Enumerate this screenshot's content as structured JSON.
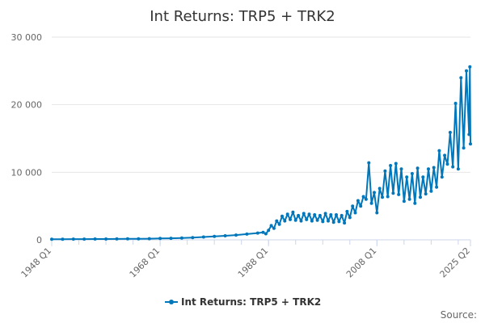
{
  "chart_data": {
    "type": "line",
    "title": "Int Returns: TRP5 + TRK2",
    "xlabel": "",
    "ylabel": "",
    "ylim": [
      0,
      30000
    ],
    "y_ticks": [
      0,
      10000,
      20000,
      30000
    ],
    "y_tick_labels": [
      "0",
      "10 000",
      "20 000",
      "30 000"
    ],
    "x_tick_labels": [
      "1948 Q1",
      "1968 Q1",
      "1988 Q1",
      "2008 Q1",
      "2025 Q2"
    ],
    "x_tick_positions": [
      1948.0,
      1968.0,
      1988.0,
      2008.0,
      2025.25
    ],
    "xlim": [
      1948.0,
      2025.25
    ],
    "grid": true,
    "legend_position": "bottom",
    "series": [
      {
        "name": "Int Returns: TRP5 + TRK2",
        "color": "#0077bb",
        "marker": "circle",
        "points": [
          [
            1948.0,
            90
          ],
          [
            1950.0,
            100
          ],
          [
            1952.0,
            110
          ],
          [
            1954.0,
            110
          ],
          [
            1956.0,
            120
          ],
          [
            1958.0,
            120
          ],
          [
            1960.0,
            130
          ],
          [
            1962.0,
            140
          ],
          [
            1964.0,
            150
          ],
          [
            1966.0,
            170
          ],
          [
            1968.0,
            200
          ],
          [
            1970.0,
            230
          ],
          [
            1972.0,
            280
          ],
          [
            1974.0,
            340
          ],
          [
            1976.0,
            420
          ],
          [
            1978.0,
            500
          ],
          [
            1980.0,
            600
          ],
          [
            1982.0,
            700
          ],
          [
            1984.0,
            850
          ],
          [
            1986.0,
            1000
          ],
          [
            1987.0,
            1100
          ],
          [
            1987.5,
            900
          ],
          [
            1988.0,
            1400
          ],
          [
            1988.5,
            2100
          ],
          [
            1989.0,
            1700
          ],
          [
            1989.5,
            2800
          ],
          [
            1990.0,
            2300
          ],
          [
            1990.5,
            3500
          ],
          [
            1991.0,
            2800
          ],
          [
            1991.5,
            3800
          ],
          [
            1992.0,
            3000
          ],
          [
            1992.5,
            4100
          ],
          [
            1993.0,
            2900
          ],
          [
            1993.5,
            3600
          ],
          [
            1994.0,
            2800
          ],
          [
            1994.5,
            3900
          ],
          [
            1995.0,
            3000
          ],
          [
            1995.5,
            3800
          ],
          [
            1996.0,
            2800
          ],
          [
            1996.5,
            3700
          ],
          [
            1997.0,
            2900
          ],
          [
            1997.5,
            3600
          ],
          [
            1998.0,
            2700
          ],
          [
            1998.5,
            3900
          ],
          [
            1999.0,
            2800
          ],
          [
            1999.5,
            3700
          ],
          [
            2000.0,
            2600
          ],
          [
            2000.5,
            3700
          ],
          [
            2001.0,
            2700
          ],
          [
            2001.5,
            3600
          ],
          [
            2002.0,
            2500
          ],
          [
            2002.5,
            4200
          ],
          [
            2003.0,
            3300
          ],
          [
            2003.5,
            5000
          ],
          [
            2004.0,
            4000
          ],
          [
            2004.5,
            5800
          ],
          [
            2005.0,
            5000
          ],
          [
            2005.5,
            6400
          ],
          [
            2006.0,
            6000
          ],
          [
            2006.5,
            11400
          ],
          [
            2007.0,
            5400
          ],
          [
            2007.5,
            7000
          ],
          [
            2008.0,
            4000
          ],
          [
            2008.5,
            7600
          ],
          [
            2009.0,
            6300
          ],
          [
            2009.5,
            10200
          ],
          [
            2010.0,
            6400
          ],
          [
            2010.5,
            11000
          ],
          [
            2011.0,
            6900
          ],
          [
            2011.5,
            11300
          ],
          [
            2012.0,
            6700
          ],
          [
            2012.5,
            10500
          ],
          [
            2013.0,
            5700
          ],
          [
            2013.5,
            9300
          ],
          [
            2014.0,
            6000
          ],
          [
            2014.5,
            9800
          ],
          [
            2015.0,
            5400
          ],
          [
            2015.5,
            10600
          ],
          [
            2016.0,
            6300
          ],
          [
            2016.5,
            9300
          ],
          [
            2017.0,
            6800
          ],
          [
            2017.5,
            10500
          ],
          [
            2018.0,
            7200
          ],
          [
            2018.5,
            10700
          ],
          [
            2019.0,
            7800
          ],
          [
            2019.5,
            13200
          ],
          [
            2020.0,
            9300
          ],
          [
            2020.5,
            12500
          ],
          [
            2021.0,
            11200
          ],
          [
            2021.5,
            15900
          ],
          [
            2022.0,
            10800
          ],
          [
            2022.5,
            20200
          ],
          [
            2023.0,
            10500
          ],
          [
            2023.5,
            24000
          ],
          [
            2024.0,
            13600
          ],
          [
            2024.5,
            25000
          ],
          [
            2025.0,
            15600
          ],
          [
            2025.15,
            25600
          ],
          [
            2025.25,
            14200
          ]
        ]
      }
    ]
  },
  "credits": {
    "text": "Source:"
  }
}
